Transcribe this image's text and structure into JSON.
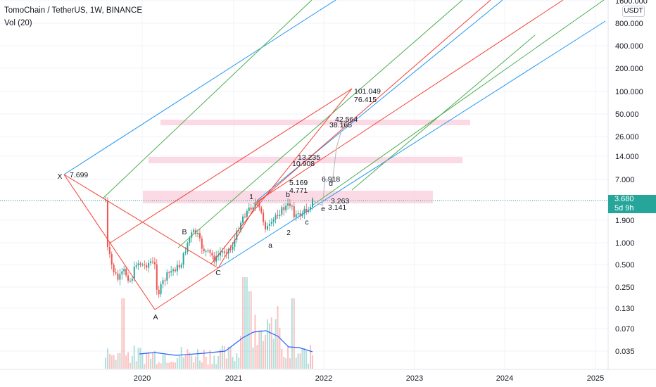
{
  "header": {
    "symbol_line": "TomoChain / TetherUS, 1W, BINANCE",
    "volume_label": "Vol (20)",
    "currency_button": "USDT"
  },
  "price_tag": {
    "price": "3.680",
    "countdown": "5d 9h"
  },
  "colors": {
    "up": "#26a69a",
    "down": "#ef5350",
    "blue_line": "#2196f3",
    "green_line": "#4caf50",
    "red_line": "#f44336",
    "zone_fill": "#f8bbd0",
    "volume_ma": "#2962ff"
  },
  "chart_data": {
    "type": "candlestick",
    "y_scale": "log",
    "y_ticks": [
      "1600.000",
      "800.000",
      "400.000",
      "200.000",
      "100.000",
      "50.000",
      "26.000",
      "14.000",
      "7.000",
      "3.680",
      "1.900",
      "1.000",
      "0.500",
      "0.250",
      "0.130",
      "0.070",
      "0.035"
    ],
    "x_ticks": [
      "2020",
      "2021",
      "2022",
      "2023",
      "2024",
      "2025"
    ],
    "wave_labels": [
      "X",
      "A",
      "B",
      "C",
      "1",
      "2",
      "a",
      "b",
      "c",
      "d",
      "e"
    ],
    "price_labels": [
      "7.699",
      "101.049",
      "76.415",
      "42.564",
      "38.165",
      "13.235",
      "10.908",
      "6.918",
      "5.169",
      "4.771",
      "3.263",
      "3.141"
    ]
  }
}
